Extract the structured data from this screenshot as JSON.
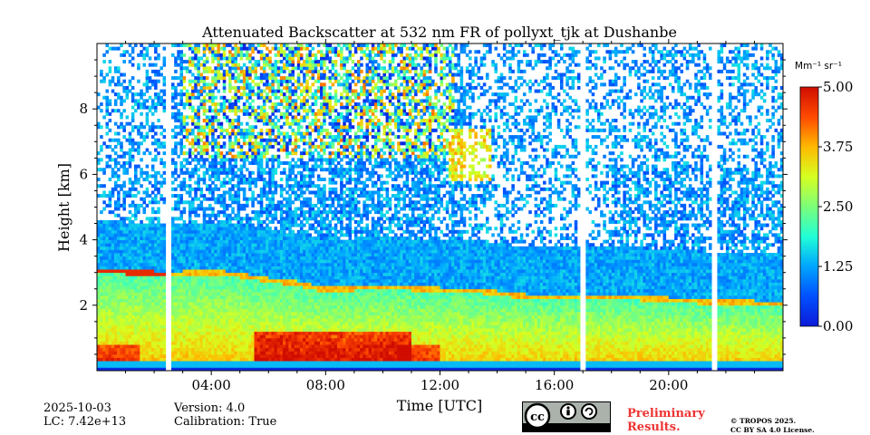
{
  "chart_data": {
    "type": "heatmap",
    "title": "Attenuated Backscatter at 532 nm FR of pollyxt_tjk at Dushanbe",
    "xlabel": "Time [UTC]",
    "ylabel": "Height [km]",
    "xlim_hours": [
      0,
      24
    ],
    "ylim_km": [
      0,
      10
    ],
    "x_ticks": [
      {
        "hour": 4,
        "label": "04:00"
      },
      {
        "hour": 8,
        "label": "08:00"
      },
      {
        "hour": 12,
        "label": "12:00"
      },
      {
        "hour": 16,
        "label": "16:00"
      },
      {
        "hour": 20,
        "label": "20:00"
      }
    ],
    "y_ticks": [
      {
        "km": 2,
        "label": "2"
      },
      {
        "km": 4,
        "label": "4"
      },
      {
        "km": 6,
        "label": "6"
      },
      {
        "km": 8,
        "label": "8"
      }
    ],
    "colorbar": {
      "unit_label": "Mm⁻¹ sr⁻¹",
      "range": [
        0.0,
        5.0
      ],
      "ticks": [
        {
          "value": 0.0,
          "label": "0.00"
        },
        {
          "value": 1.25,
          "label": "1.25"
        },
        {
          "value": 2.5,
          "label": "2.50"
        },
        {
          "value": 3.75,
          "label": "3.75"
        },
        {
          "value": 5.0,
          "label": "5.00"
        }
      ],
      "colormap": "jet"
    },
    "boundary_layer_top_km": [
      [
        0,
        3.0
      ],
      [
        1,
        2.95
      ],
      [
        2,
        2.9
      ],
      [
        3,
        2.9
      ],
      [
        4,
        2.95
      ],
      [
        5,
        2.85
      ],
      [
        6,
        2.7
      ],
      [
        7,
        2.6
      ],
      [
        8,
        2.4
      ],
      [
        9,
        2.45
      ],
      [
        10,
        2.5
      ],
      [
        11,
        2.45
      ],
      [
        12,
        2.4
      ],
      [
        13,
        2.4
      ],
      [
        14,
        2.3
      ],
      [
        15,
        2.2
      ],
      [
        16,
        2.15
      ],
      [
        17,
        2.2
      ],
      [
        18,
        2.2
      ],
      [
        19,
        2.15
      ],
      [
        20,
        2.1
      ],
      [
        21,
        2.05
      ],
      [
        22,
        2.05
      ],
      [
        23,
        2.0
      ],
      [
        24,
        2.0
      ]
    ],
    "data_gaps_hours": [
      [
        2.42,
        2.6
      ],
      [
        16.95,
        17.1
      ],
      [
        21.55,
        21.7
      ]
    ]
  },
  "footer": {
    "date": "2025-10-03",
    "lidar_constant": "LC: 7.42e+13",
    "version": "Version: 4.0",
    "calibration": "Calibration: True",
    "preliminary_line1": "Preliminary",
    "preliminary_line2": "Results.",
    "copyright_line1": "© TROPOS 2025.",
    "copyright_line2": "CC BY SA 4.0 License.",
    "license_badge": {
      "by": "BY",
      "sa": "SA"
    }
  },
  "colors": {
    "preliminary": "#ee3333"
  }
}
